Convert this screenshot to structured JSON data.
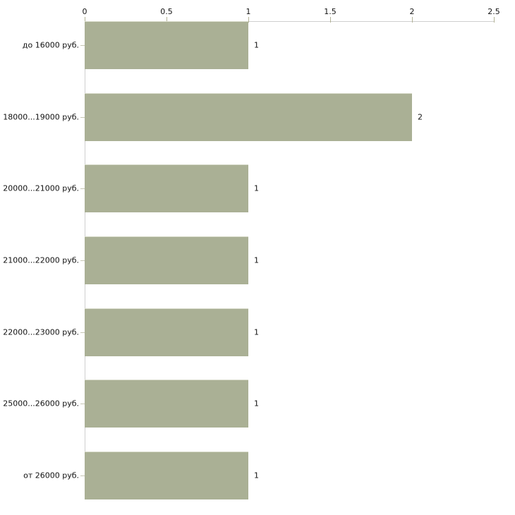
{
  "chart_data": {
    "type": "bar",
    "orientation": "horizontal",
    "title": "",
    "xlabel": "",
    "ylabel": "",
    "categories": [
      "до 16000 руб.",
      "18000...19000 руб.",
      "20000...21000 руб.",
      "21000...22000 руб.",
      "22000...23000 руб.",
      "25000...26000 руб.",
      "от 26000 руб."
    ],
    "values": [
      1,
      2,
      1,
      1,
      1,
      1,
      1
    ],
    "value_labels": [
      "1",
      "2",
      "1",
      "1",
      "1",
      "1",
      "1"
    ],
    "x_ticks": [
      "0",
      "0.5",
      "1",
      "1.5",
      "2",
      "2.5"
    ],
    "x_tick_values": [
      0,
      0.5,
      1,
      1.5,
      2,
      2.5
    ],
    "xlim": [
      0,
      2.5
    ],
    "grid": false,
    "legend": false,
    "axis_position": "top",
    "colors": {
      "bar": "#aab095",
      "axis_line": "#cfcfcf",
      "tick_mark": "#b2b296",
      "text": "#111111",
      "background": "#ffffff"
    }
  }
}
